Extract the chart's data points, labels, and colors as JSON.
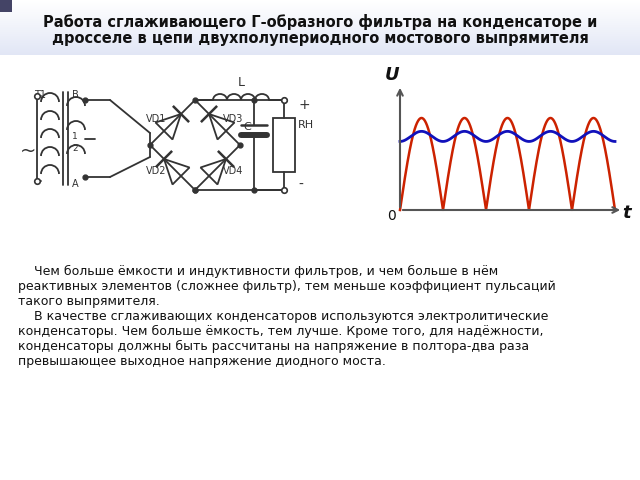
{
  "title_line1": "Работа сглаживающего Г-образного фильтра на конденсаторе и",
  "title_line2": "дросселе в цепи двухполупериодного мостового выпрямителя",
  "title_fontsize": 10.5,
  "bg_color": "#f0f0f8",
  "white_color": "#ffffff",
  "body_text": [
    "    Чем больше ёмкости и индуктивности фильтров, и чем больше в нём",
    "реактивных элементов (сложнее фильтр), тем меньше коэффициент пульсаций",
    "такого выпрямителя.",
    "    В качестве сглаживающих конденсаторов используются электролитические",
    "конденсаторы. Чем больше ёмкость, тем лучше. Кроме того, для надёжности,",
    "конденсаторы должны быть рассчитаны на напряжение в полтора-два раза",
    "превышающее выходное напряжение диодного моста."
  ],
  "body_fontsize": 9.0,
  "circuit_color": "#333333",
  "red_color": "#cc2200",
  "blue_color": "#1111bb",
  "axis_color": "#555555",
  "line_width": 1.3
}
